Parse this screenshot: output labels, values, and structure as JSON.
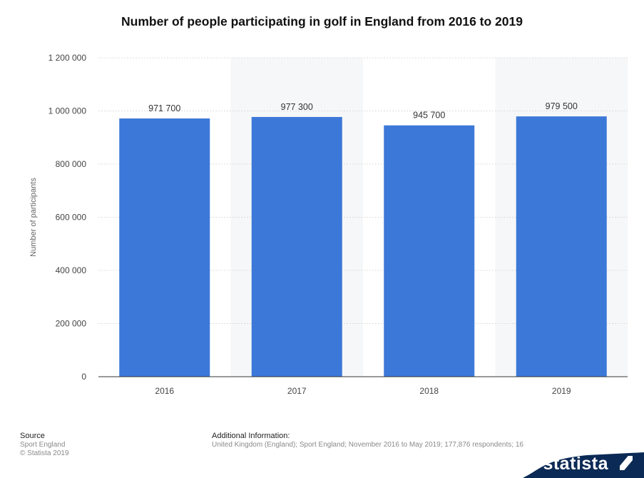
{
  "chart_data": {
    "type": "bar",
    "title": "Number of people participating in golf in England from 2016 to 2019",
    "xlabel": "",
    "ylabel": "Number of participants",
    "categories": [
      "2016",
      "2017",
      "2018",
      "2019"
    ],
    "values": [
      971700,
      977300,
      945700,
      979500
    ],
    "value_labels": [
      "971 700",
      "977 300",
      "945 700",
      "979 500"
    ],
    "ylim": [
      0,
      1200000
    ],
    "yticks": [
      0,
      200000,
      400000,
      600000,
      800000,
      1000000,
      1200000
    ],
    "ytick_labels": [
      "0",
      "200 000",
      "400 000",
      "600 000",
      "800 000",
      "1 000 000",
      "1 200 000"
    ],
    "bar_color": "#3c78d8",
    "grid": true,
    "legend": "none"
  },
  "footer": {
    "source_heading": "Source",
    "source_lines": [
      "Sport England",
      "© Statista 2019"
    ],
    "info_heading": "Additional Information:",
    "info_text": "United Kingdom (England); Sport England; November 2016 to May 2019; 177,876 respondents; 16"
  },
  "brand": {
    "label": "statista",
    "color": "#0b2a55"
  }
}
